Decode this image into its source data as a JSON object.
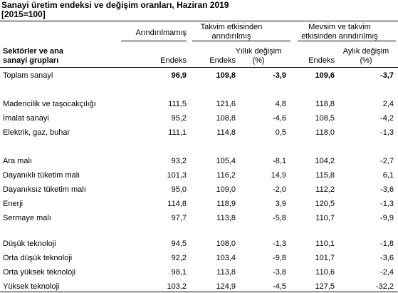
{
  "header": {
    "title": "Sanayi üretim endeksi ve değişim oranları, Haziran 2019",
    "subtitle": "[2015=100]"
  },
  "table": {
    "groups": [
      "Arındırılmamış",
      "Takvim etkisinden arındırılmış",
      "Mevsim ve takvim etkisinden arındırılmış"
    ],
    "row_header": "Sektörler ve ana sanayi grupları",
    "columns": [
      "Endeks",
      "Endeks",
      "Yıllık değişim (%)",
      "Endeks",
      "Aylık değişim (%)"
    ],
    "sections": [
      [
        [
          "Toplam sanayi",
          "96,9",
          "109,8",
          "-3,9",
          "109,6",
          "-3,7"
        ]
      ],
      [
        [
          "Madencilik ve taşocakçılığı",
          "111,5",
          "121,6",
          "4,8",
          "118,8",
          "2,4"
        ],
        [
          "İmalat sanayi",
          "95,2",
          "108,8",
          "-4,6",
          "108,5",
          "-4,2"
        ],
        [
          "Elektrik, gaz, buhar",
          "111,1",
          "114,8",
          "0,5",
          "118,0",
          "-1,3"
        ]
      ],
      [
        [
          "Ara malı",
          "93,2",
          "105,4",
          "-8,1",
          "104,2",
          "-2,7"
        ],
        [
          "Dayanıklı tüketim malı",
          "101,3",
          "116,2",
          "14,9",
          "115,8",
          "6,1"
        ],
        [
          "Dayanıksız tüketim malı",
          "95,0",
          "109,0",
          "-2,0",
          "112,2",
          "-3,6"
        ],
        [
          "Enerji",
          "114,8",
          "118,9",
          "3,9",
          "120,5",
          "-1,3"
        ],
        [
          "Sermaye malı",
          "97,7",
          "113,8",
          "-5,8",
          "110,7",
          "-9,9"
        ]
      ],
      [
        [
          "Düşük teknoloji",
          "94,5",
          "108,0",
          "-1,3",
          "110,1",
          "-1,8"
        ],
        [
          "Orta düşük teknoloji",
          "92,2",
          "103,4",
          "-9,8",
          "101,7",
          "-3,6"
        ],
        [
          "Orta yüksek teknoloji",
          "98,1",
          "113,8",
          "-3,8",
          "110,6",
          "-2,4"
        ],
        [
          "Yüksek teknoloji",
          "103,2",
          "124,9",
          "-4,5",
          "127,5",
          "-32,2"
        ]
      ]
    ]
  }
}
